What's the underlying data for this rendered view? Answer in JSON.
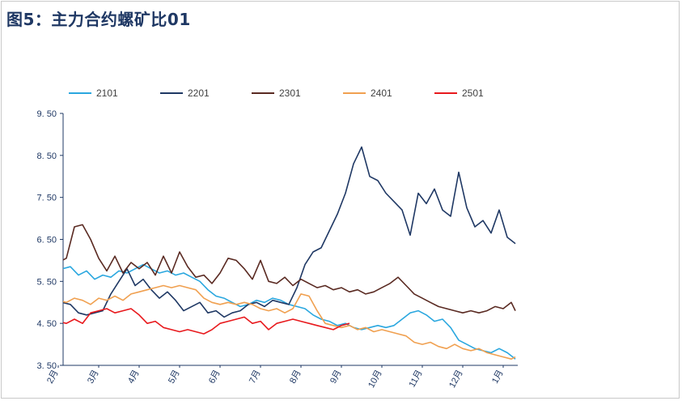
{
  "title": "图5：主力合约螺矿比01",
  "chart_data": {
    "type": "line",
    "title": "图5：主力合约螺矿比01",
    "xlabel": "",
    "ylabel": "",
    "ylim": [
      3.5,
      9.5
    ],
    "yticks": [
      "3. 50",
      "4. 50",
      "5. 50",
      "6. 50",
      "7. 50",
      "8. 50",
      "9. 50"
    ],
    "ytick_values": [
      3.5,
      4.5,
      5.5,
      6.5,
      7.5,
      8.5,
      9.5
    ],
    "x_months": [
      "2月",
      "3月",
      "4月",
      "5月",
      "6月",
      "7月",
      "8月",
      "9月",
      "10月",
      "11月",
      "12月",
      "1月"
    ],
    "x_note": "x values are month positions: 0 = 2月 ... 11 = 1月",
    "legend_position": "top",
    "series": [
      {
        "name": "2101",
        "color": "#2aa7df",
        "x": [
          0,
          0.1,
          0.3,
          0.5,
          0.7,
          0.9,
          1.1,
          1.3,
          1.5,
          1.7,
          1.9,
          2.1,
          2.3,
          2.5,
          2.7,
          2.9,
          3.1,
          3.3,
          3.5,
          3.7,
          3.9,
          4.1,
          4.3,
          4.5,
          4.7,
          4.9,
          5.1,
          5.3,
          5.5,
          5.7,
          5.9,
          6.1,
          6.3,
          6.5,
          6.7,
          6.9,
          7.1,
          7.3,
          7.5,
          7.7,
          7.9,
          8.1,
          8.3,
          8.5,
          8.7,
          8.9,
          9.1,
          9.3,
          9.5,
          9.7,
          9.9,
          10.1,
          10.3,
          10.5,
          10.7,
          10.9,
          11.1,
          11.3
        ],
        "values": [
          5.7,
          5.8,
          5.85,
          5.65,
          5.75,
          5.55,
          5.65,
          5.6,
          5.75,
          5.7,
          5.8,
          5.9,
          5.8,
          5.7,
          5.75,
          5.65,
          5.7,
          5.6,
          5.5,
          5.3,
          5.15,
          5.1,
          5.0,
          4.9,
          4.95,
          5.05,
          5.0,
          5.1,
          5.05,
          4.95,
          4.9,
          4.85,
          4.7,
          4.6,
          4.55,
          4.45,
          4.5,
          4.4,
          4.35,
          4.4,
          4.45,
          4.4,
          4.45,
          4.6,
          4.75,
          4.8,
          4.7,
          4.55,
          4.6,
          4.4,
          4.1,
          4.0,
          3.9,
          3.85,
          3.8,
          3.9,
          3.8,
          3.65
        ]
      },
      {
        "name": "2201",
        "color": "#1f3864",
        "x": [
          0,
          0.1,
          0.3,
          0.5,
          0.7,
          0.9,
          1.1,
          1.3,
          1.5,
          1.7,
          1.9,
          2.1,
          2.3,
          2.5,
          2.7,
          2.9,
          3.1,
          3.3,
          3.5,
          3.7,
          3.9,
          4.1,
          4.3,
          4.5,
          4.7,
          4.9,
          5.1,
          5.3,
          5.5,
          5.7,
          5.9,
          6.1,
          6.3,
          6.5,
          6.7,
          6.9,
          7.1,
          7.3,
          7.5,
          7.7,
          7.9,
          8.1,
          8.3,
          8.5,
          8.7,
          8.9,
          9.1,
          9.3,
          9.5,
          9.7,
          9.9,
          10.1,
          10.3,
          10.5,
          10.7,
          10.9,
          11.1,
          11.3
        ],
        "values": [
          4.7,
          5.0,
          4.95,
          4.75,
          4.7,
          4.75,
          4.8,
          5.2,
          5.5,
          5.8,
          5.4,
          5.55,
          5.3,
          5.1,
          5.25,
          5.05,
          4.8,
          4.9,
          5.0,
          4.75,
          4.8,
          4.65,
          4.75,
          4.8,
          4.95,
          5.0,
          4.9,
          5.05,
          5.0,
          4.95,
          5.35,
          5.9,
          6.2,
          6.3,
          6.7,
          7.1,
          7.6,
          8.3,
          8.7,
          8.0,
          7.9,
          7.6,
          7.4,
          7.2,
          6.6,
          7.6,
          7.35,
          7.7,
          7.2,
          7.05,
          8.1,
          7.25,
          6.8,
          6.95,
          6.65,
          7.2,
          6.55,
          6.4
        ]
      },
      {
        "name": "2301",
        "color": "#5a2a22",
        "x": [
          0,
          0.2,
          0.4,
          0.6,
          0.8,
          1.0,
          1.2,
          1.4,
          1.6,
          1.8,
          2.0,
          2.2,
          2.4,
          2.6,
          2.8,
          3.0,
          3.2,
          3.4,
          3.6,
          3.8,
          4.0,
          4.2,
          4.4,
          4.6,
          4.8,
          5.0,
          5.2,
          5.4,
          5.6,
          5.8,
          6.0,
          6.2,
          6.4,
          6.6,
          6.8,
          7.0,
          7.2,
          7.4,
          7.6,
          7.8,
          8.0,
          8.2,
          8.4,
          8.6,
          8.8,
          9.0,
          9.2,
          9.4,
          9.6,
          9.8,
          10.0,
          10.2,
          10.4,
          10.6,
          10.8,
          11.0,
          11.2,
          11.3
        ],
        "values": [
          5.95,
          6.05,
          6.8,
          6.85,
          6.5,
          6.05,
          5.75,
          6.1,
          5.7,
          5.95,
          5.8,
          5.95,
          5.65,
          6.1,
          5.7,
          6.2,
          5.85,
          5.6,
          5.65,
          5.45,
          5.7,
          6.05,
          6.0,
          5.8,
          5.55,
          6.0,
          5.5,
          5.45,
          5.6,
          5.4,
          5.55,
          5.45,
          5.35,
          5.4,
          5.3,
          5.35,
          5.25,
          5.3,
          5.2,
          5.25,
          5.35,
          5.45,
          5.6,
          5.4,
          5.2,
          5.1,
          5.0,
          4.9,
          4.85,
          4.8,
          4.75,
          4.8,
          4.75,
          4.8,
          4.9,
          4.85,
          5.0,
          4.8
        ]
      },
      {
        "name": "2401",
        "color": "#f0a050",
        "x": [
          0,
          0.2,
          0.4,
          0.6,
          0.8,
          1.0,
          1.2,
          1.4,
          1.6,
          1.8,
          2.0,
          2.2,
          2.4,
          2.6,
          2.8,
          3.0,
          3.2,
          3.4,
          3.6,
          3.8,
          4.0,
          4.2,
          4.4,
          4.6,
          4.8,
          5.0,
          5.2,
          5.4,
          5.6,
          5.8,
          6.0,
          6.2,
          6.4,
          6.6,
          6.8,
          7.0,
          7.2,
          7.4,
          7.6,
          7.8,
          8.0,
          8.2,
          8.4,
          8.6,
          8.8,
          9.0,
          9.2,
          9.4,
          9.6,
          9.8,
          10.0,
          10.2,
          10.4,
          10.6,
          10.8,
          11.0,
          11.2,
          11.3
        ],
        "values": [
          5.05,
          5.0,
          5.1,
          5.05,
          4.95,
          5.1,
          5.05,
          5.15,
          5.05,
          5.2,
          5.25,
          5.3,
          5.35,
          5.4,
          5.35,
          5.4,
          5.35,
          5.3,
          5.1,
          5.0,
          4.95,
          5.0,
          4.95,
          5.0,
          4.95,
          4.85,
          4.8,
          4.85,
          4.75,
          4.85,
          5.2,
          5.15,
          4.8,
          4.5,
          4.45,
          4.4,
          4.45,
          4.35,
          4.4,
          4.3,
          4.35,
          4.3,
          4.25,
          4.2,
          4.05,
          4.0,
          4.05,
          3.95,
          3.9,
          4.0,
          3.9,
          3.85,
          3.9,
          3.8,
          3.75,
          3.7,
          3.65,
          3.7
        ]
      },
      {
        "name": "2501",
        "color": "#e8191d",
        "x": [
          0,
          0.2,
          0.4,
          0.6,
          0.8,
          1.0,
          1.2,
          1.4,
          1.6,
          1.8,
          2.0,
          2.2,
          2.4,
          2.6,
          2.8,
          3.0,
          3.2,
          3.4,
          3.6,
          3.8,
          4.0,
          4.2,
          4.4,
          4.6,
          4.8,
          5.0,
          5.2,
          5.4,
          5.6,
          5.8,
          6.0,
          6.2,
          6.4,
          6.6,
          6.8,
          7.0,
          7.2
        ],
        "values": [
          4.55,
          4.5,
          4.6,
          4.5,
          4.75,
          4.8,
          4.85,
          4.75,
          4.8,
          4.85,
          4.7,
          4.5,
          4.55,
          4.4,
          4.35,
          4.3,
          4.35,
          4.3,
          4.25,
          4.35,
          4.5,
          4.55,
          4.6,
          4.65,
          4.5,
          4.55,
          4.35,
          4.5,
          4.55,
          4.6,
          4.55,
          4.5,
          4.45,
          4.4,
          4.35,
          4.45,
          4.5
        ]
      }
    ]
  }
}
